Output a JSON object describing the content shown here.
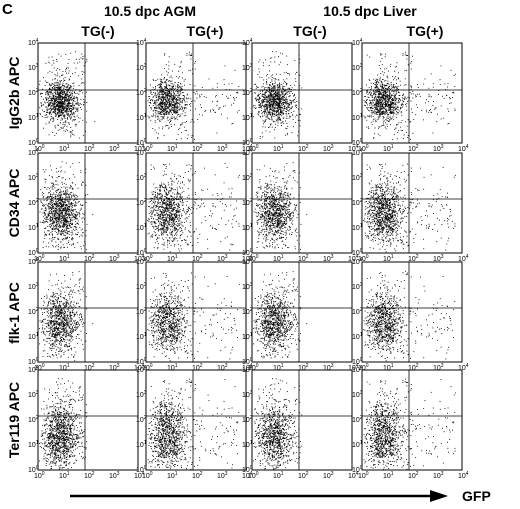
{
  "figure": {
    "panel_letter": "C",
    "group_headers": [
      "10.5 dpc AGM",
      "10.5 dpc Liver"
    ],
    "columns": [
      "TG(-)",
      "TG(+)",
      "TG(-)",
      "TG(+)"
    ],
    "rows": [
      "IgG2b APC",
      "CD34 APC",
      "flk-1 APC",
      "Ter119 APC"
    ],
    "x_axis_label": "GFP",
    "log_ticks": {
      "exponents": [
        "0",
        "1",
        "2",
        "3",
        "4"
      ],
      "base": "10"
    }
  }
}
